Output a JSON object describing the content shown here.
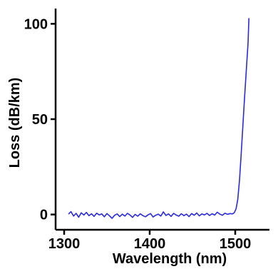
{
  "chart_data": {
    "type": "line",
    "xlabel": "Wavelength (nm)",
    "ylabel": "Loss (dB/km)",
    "xlim": [
      1290,
      1540
    ],
    "ylim": [
      -8,
      108
    ],
    "xticks": [
      1300,
      1400,
      1500
    ],
    "yticks": [
      0,
      50,
      100
    ],
    "grid": false,
    "series": [
      {
        "color": "#2a2adf",
        "x": [
          1305,
          1308,
          1311,
          1314,
          1317,
          1320,
          1323,
          1326,
          1329,
          1332,
          1335,
          1338,
          1341,
          1344,
          1347,
          1350,
          1353,
          1356,
          1359,
          1362,
          1365,
          1368,
          1371,
          1374,
          1377,
          1380,
          1383,
          1386,
          1389,
          1392,
          1395,
          1398,
          1401,
          1404,
          1407,
          1410,
          1413,
          1416,
          1419,
          1422,
          1425,
          1428,
          1431,
          1434,
          1437,
          1440,
          1443,
          1446,
          1449,
          1452,
          1455,
          1458,
          1461,
          1464,
          1467,
          1470,
          1473,
          1476,
          1479,
          1482,
          1485,
          1488,
          1491,
          1494,
          1497,
          1499,
          1501,
          1503,
          1505,
          1507,
          1509,
          1511,
          1513,
          1515,
          1516
        ],
        "y": [
          0.2,
          1.5,
          -0.8,
          0.6,
          -1.4,
          0.9,
          -0.3,
          1.1,
          -0.6,
          0.4,
          -1.0,
          0.7,
          -0.2,
          0.3,
          -1.2,
          0.5,
          -0.7,
          -2.0,
          -0.4,
          0.3,
          -1.1,
          0.2,
          -0.8,
          0.6,
          -0.3,
          -1.5,
          0.1,
          -0.9,
          0.4,
          -0.6,
          -1.2,
          -0.2,
          0.5,
          -1.3,
          -0.4,
          0.2,
          -0.8,
          1.4,
          -0.5,
          0.3,
          -1.0,
          0.6,
          -0.3,
          -0.9,
          0.4,
          -0.6,
          0.2,
          -1.1,
          0.5,
          -0.4,
          0.8,
          -0.7,
          0.3,
          -0.2,
          0.6,
          -0.5,
          0.4,
          -0.3,
          1.2,
          0.2,
          -0.4,
          0.7,
          0.1,
          0.5,
          0.3,
          1.0,
          3.0,
          8.0,
          18.0,
          32.0,
          47.0,
          62.0,
          76.0,
          90.0,
          103.0
        ]
      }
    ]
  }
}
